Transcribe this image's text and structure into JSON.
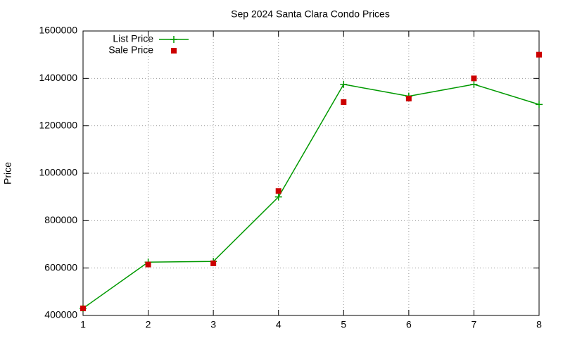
{
  "chart_data": {
    "type": "line",
    "title": "Sep 2024 Santa Clara Condo Prices",
    "y_label": "Price",
    "x": [
      1,
      2,
      3,
      4,
      5,
      6,
      7,
      8
    ],
    "xlim": [
      1,
      8
    ],
    "xticks": [
      1,
      2,
      3,
      4,
      5,
      6,
      7,
      8
    ],
    "ylim": [
      400000,
      1600000
    ],
    "yticks": [
      400000,
      600000,
      800000,
      1000000,
      1200000,
      1400000,
      1600000
    ],
    "grid": true,
    "legend": "top-left",
    "series": [
      {
        "name": "List Price",
        "color": "#009900",
        "style": "linespoints",
        "marker": "plus",
        "values": [
          430000,
          625000,
          628000,
          900000,
          1375000,
          1325000,
          1375000,
          1290000
        ]
      },
      {
        "name": "Sale Price",
        "color": "#cc0000",
        "style": "points",
        "marker": "square",
        "values": [
          430000,
          615000,
          620000,
          925000,
          1300000,
          1315000,
          1400000,
          1500000
        ]
      }
    ]
  }
}
